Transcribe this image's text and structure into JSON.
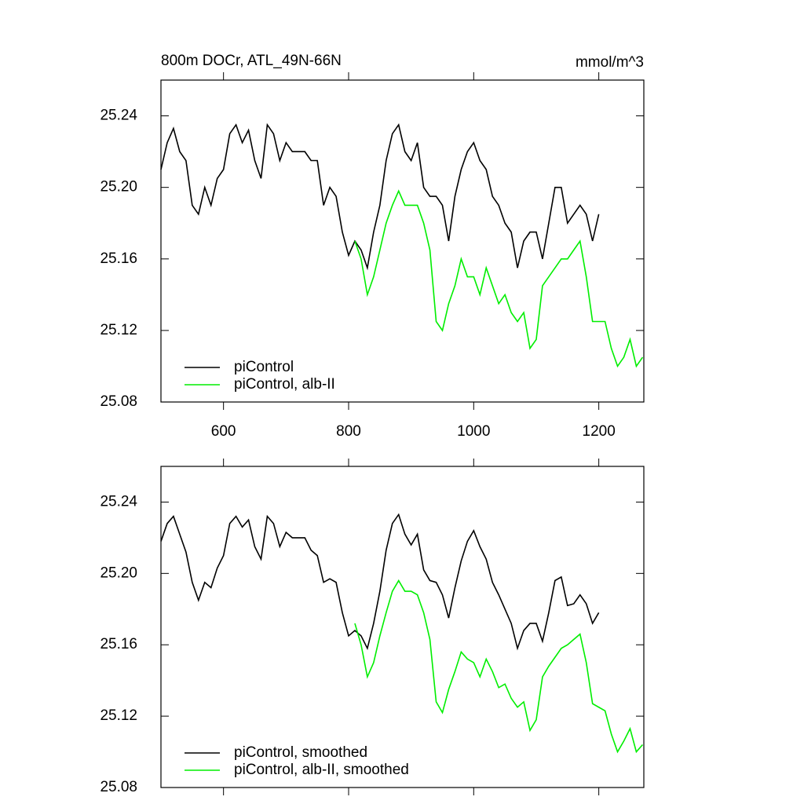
{
  "chart_data": [
    {
      "type": "line",
      "title": "800m DOCr, ATL_49N-66N",
      "units": "mmol/m^3",
      "x": [
        500,
        510,
        520,
        530,
        540,
        550,
        560,
        570,
        580,
        590,
        600,
        610,
        620,
        630,
        640,
        650,
        660,
        670,
        680,
        690,
        700,
        710,
        720,
        730,
        740,
        750,
        760,
        770,
        780,
        790,
        800,
        810,
        820,
        830,
        840,
        850,
        860,
        870,
        880,
        890,
        900,
        910,
        920,
        930,
        940,
        950,
        960,
        970,
        980,
        990,
        1000,
        1010,
        1020,
        1030,
        1040,
        1050,
        1060,
        1070,
        1080,
        1090,
        1100,
        1110,
        1120,
        1130,
        1140,
        1150,
        1160,
        1170,
        1180,
        1190,
        1200,
        1210,
        1220,
        1230,
        1240,
        1250,
        1260,
        1270
      ],
      "series": [
        {
          "name": "piControl",
          "color": "#000000",
          "values": [
            25.21,
            25.225,
            25.233,
            25.22,
            25.215,
            25.19,
            25.185,
            25.2,
            25.19,
            25.205,
            25.21,
            25.23,
            25.235,
            25.225,
            25.232,
            25.215,
            25.205,
            25.235,
            25.23,
            25.215,
            25.225,
            25.22,
            25.22,
            25.22,
            25.215,
            25.215,
            25.19,
            25.2,
            25.195,
            25.175,
            25.162,
            25.17,
            25.165,
            25.155,
            25.175,
            25.19,
            25.215,
            25.23,
            25.235,
            25.22,
            25.215,
            25.225,
            25.2,
            25.195,
            25.195,
            25.19,
            25.17,
            25.195,
            25.21,
            25.22,
            25.225,
            25.215,
            25.21,
            25.195,
            25.19,
            25.18,
            25.175,
            25.155,
            25.17,
            25.175,
            25.175,
            25.16,
            25.18,
            25.2,
            25.2,
            25.18,
            25.185,
            25.19,
            25.185,
            25.17,
            25.185,
            null,
            null,
            null,
            null,
            null,
            null,
            null
          ]
        },
        {
          "name": "piControl, alb-II",
          "color": "#00ee00",
          "values": [
            null,
            null,
            null,
            null,
            null,
            null,
            null,
            null,
            null,
            null,
            null,
            null,
            null,
            null,
            null,
            null,
            null,
            null,
            null,
            null,
            null,
            null,
            null,
            null,
            null,
            null,
            null,
            null,
            null,
            null,
            null,
            25.17,
            25.16,
            25.14,
            25.15,
            25.165,
            25.18,
            25.19,
            25.198,
            25.19,
            25.19,
            25.19,
            25.18,
            25.165,
            25.125,
            25.12,
            25.135,
            25.145,
            25.16,
            25.15,
            25.15,
            25.14,
            25.155,
            25.145,
            25.135,
            25.14,
            25.13,
            25.125,
            25.13,
            25.11,
            25.115,
            25.145,
            25.15,
            25.155,
            25.16,
            25.16,
            25.165,
            25.17,
            25.15,
            25.125,
            25.125,
            25.125,
            25.11,
            25.1,
            25.105,
            25.115,
            25.1,
            25.105
          ]
        }
      ],
      "xlim": [
        500,
        1272
      ],
      "xticks": [
        600,
        800,
        1000,
        1200
      ],
      "xtick_labels": true,
      "ylim": [
        25.08,
        25.26
      ],
      "yticks": [
        25.08,
        25.12,
        25.16,
        {
          "value": 25.2,
          "label": "25.20"
        },
        25.24
      ],
      "legend": "lower left",
      "grid": false
    },
    {
      "type": "line",
      "x": [
        500,
        510,
        520,
        530,
        540,
        550,
        560,
        570,
        580,
        590,
        600,
        610,
        620,
        630,
        640,
        650,
        660,
        670,
        680,
        690,
        700,
        710,
        720,
        730,
        740,
        750,
        760,
        770,
        780,
        790,
        800,
        810,
        820,
        830,
        840,
        850,
        860,
        870,
        880,
        890,
        900,
        910,
        920,
        930,
        940,
        950,
        960,
        970,
        980,
        990,
        1000,
        1010,
        1020,
        1030,
        1040,
        1050,
        1060,
        1070,
        1080,
        1090,
        1100,
        1110,
        1120,
        1130,
        1140,
        1150,
        1160,
        1170,
        1180,
        1190,
        1200,
        1210,
        1220,
        1230,
        1240,
        1250,
        1260,
        1270
      ],
      "series": [
        {
          "name": "piControl, smoothed",
          "color": "#000000",
          "values": [
            25.218,
            25.228,
            25.232,
            25.222,
            25.212,
            25.195,
            25.185,
            25.195,
            25.192,
            25.203,
            25.21,
            25.228,
            25.232,
            25.226,
            25.23,
            25.215,
            25.208,
            25.232,
            25.228,
            25.215,
            25.223,
            25.22,
            25.22,
            25.22,
            25.213,
            25.21,
            25.195,
            25.197,
            25.195,
            25.178,
            25.165,
            25.168,
            25.165,
            25.158,
            25.172,
            25.19,
            25.213,
            25.228,
            25.233,
            25.222,
            25.216,
            25.222,
            25.202,
            25.196,
            25.195,
            25.188,
            25.175,
            25.192,
            25.207,
            25.218,
            25.224,
            25.215,
            25.208,
            25.195,
            25.188,
            25.18,
            25.172,
            25.158,
            25.168,
            25.172,
            25.172,
            25.162,
            25.178,
            25.196,
            25.198,
            25.182,
            25.183,
            25.188,
            25.183,
            25.172,
            25.178,
            null,
            null,
            null,
            null,
            null,
            null,
            null
          ]
        },
        {
          "name": "piControl, alb-II, smoothed",
          "color": "#00ee00",
          "values": [
            null,
            null,
            null,
            null,
            null,
            null,
            null,
            null,
            null,
            null,
            null,
            null,
            null,
            null,
            null,
            null,
            null,
            null,
            null,
            null,
            null,
            null,
            null,
            null,
            null,
            null,
            null,
            null,
            null,
            null,
            null,
            25.172,
            25.16,
            25.142,
            25.15,
            25.165,
            25.178,
            25.19,
            25.196,
            25.19,
            25.19,
            25.188,
            25.178,
            25.163,
            25.128,
            25.122,
            25.135,
            25.145,
            25.156,
            25.152,
            25.15,
            25.142,
            25.152,
            25.145,
            25.136,
            25.138,
            25.13,
            25.125,
            25.128,
            25.112,
            25.118,
            25.142,
            25.148,
            25.153,
            25.158,
            25.16,
            25.163,
            25.166,
            25.15,
            25.127,
            25.125,
            25.123,
            25.11,
            25.1,
            25.106,
            25.113,
            25.1,
            25.104
          ]
        }
      ],
      "xlim": [
        500,
        1272
      ],
      "xticks": [
        600,
        800,
        1000,
        1200
      ],
      "xtick_labels": false,
      "ylim": [
        25.08,
        25.26
      ],
      "yticks": [
        25.08,
        25.12,
        25.16,
        {
          "value": 25.2,
          "label": "25.20"
        },
        25.24
      ],
      "legend": "lower left",
      "grid": false
    }
  ]
}
